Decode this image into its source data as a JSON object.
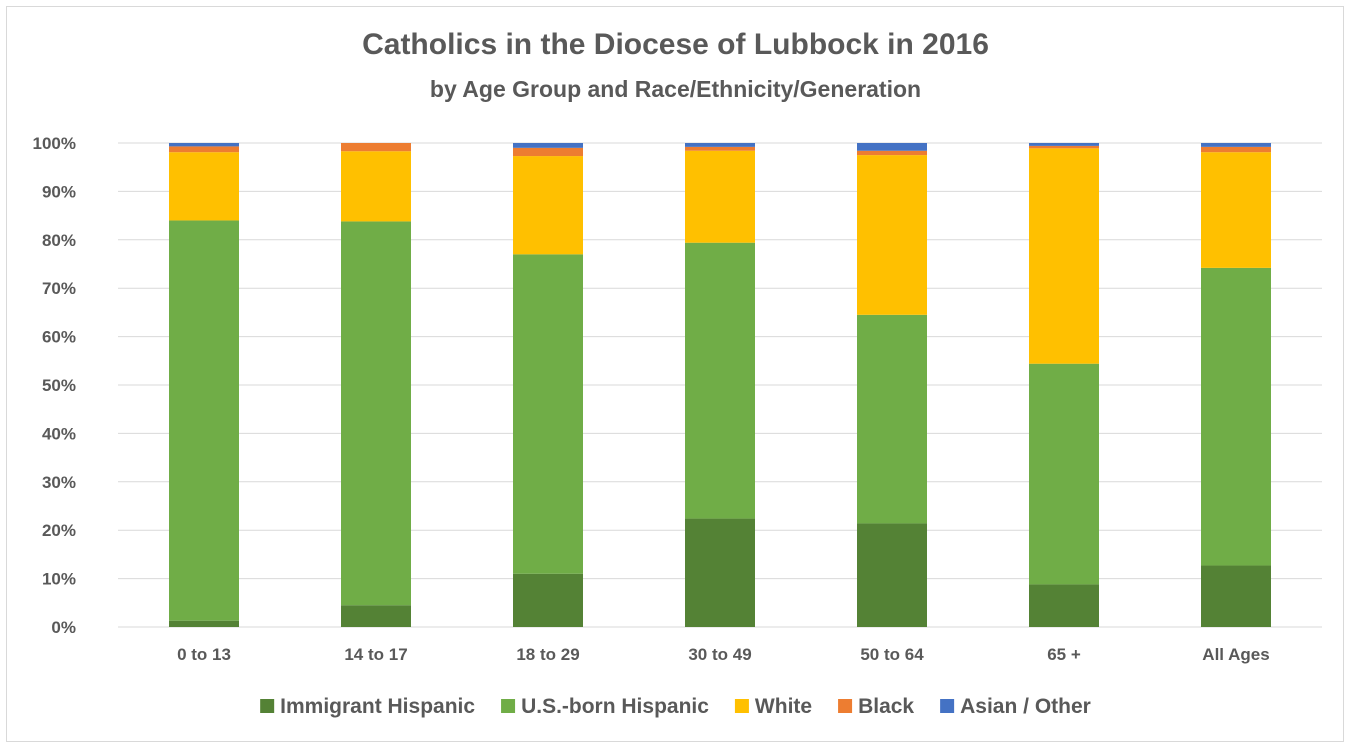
{
  "chart_data": {
    "type": "bar",
    "stacked": true,
    "percent_axis": true,
    "title": "Catholics in the Diocese of Lubbock in 2016",
    "subtitle": "by Age Group and Race/Ethnicity/Generation",
    "xlabel": "",
    "ylabel": "",
    "ylim": [
      0,
      100
    ],
    "y_ticks": [
      "0%",
      "10%",
      "20%",
      "30%",
      "40%",
      "50%",
      "60%",
      "70%",
      "80%",
      "90%",
      "100%"
    ],
    "grid": true,
    "legend_position": "bottom",
    "categories": [
      "0 to 13",
      "14 to 17",
      "18 to 29",
      "30 to 49",
      "50 to 64",
      "65 +",
      "All Ages"
    ],
    "series": [
      {
        "name": "Immigrant Hispanic",
        "color": "#548235",
        "values": [
          1.3,
          4.5,
          11.0,
          22.4,
          21.4,
          8.8,
          12.7
        ]
      },
      {
        "name": "U.S.-born Hispanic",
        "color": "#70ad47",
        "values": [
          82.7,
          79.3,
          66.0,
          57.0,
          43.1,
          45.6,
          61.5
        ]
      },
      {
        "name": "White",
        "color": "#ffc000",
        "values": [
          14.1,
          14.5,
          20.3,
          19.0,
          33.0,
          44.5,
          23.9
        ]
      },
      {
        "name": "Black",
        "color": "#ed7d31",
        "values": [
          1.2,
          1.7,
          1.7,
          0.8,
          0.9,
          0.5,
          1.1
        ]
      },
      {
        "name": "Asian / Other",
        "color": "#4472c4",
        "values": [
          0.7,
          0.0,
          1.0,
          0.8,
          1.6,
          0.6,
          0.8
        ]
      }
    ]
  }
}
